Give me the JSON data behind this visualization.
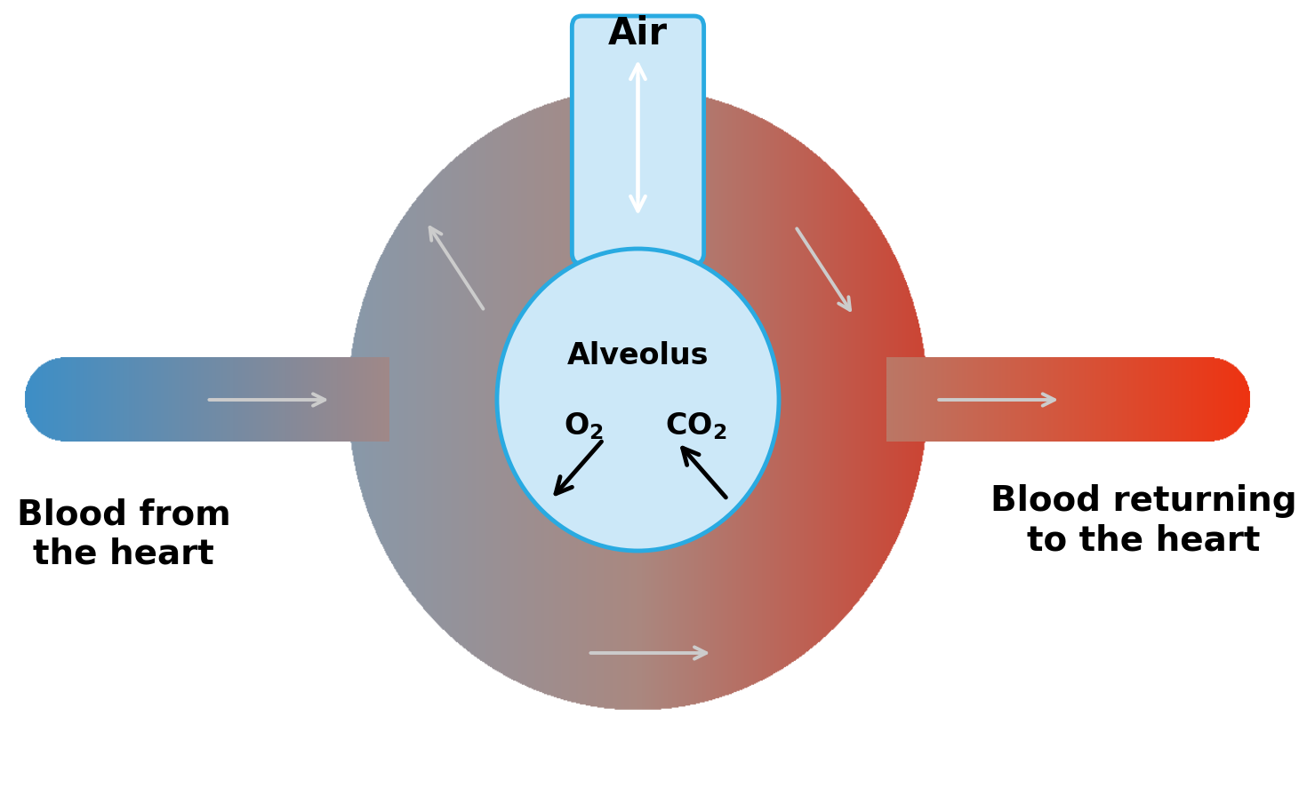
{
  "bg_color": "#ffffff",
  "alveolus_fill": "#cce8f8",
  "alveolus_border": "#29aae1",
  "air_tube_fill": "#cce8f8",
  "air_tube_border": "#29aae1",
  "air_label": "Air",
  "alveolus_label": "Alveolus",
  "o2_label": "O₂",
  "co2_label": "CO₂",
  "blood_left_label": "Blood from\nthe heart",
  "blood_right_label": "Blood returning\nto the heart",
  "large_circle_left_color": "#8899aa",
  "large_circle_mid_color": "#aa8880",
  "large_circle_right_color": "#cc4433",
  "vessel_left_start": "#3d8fc7",
  "vessel_left_end": "#a08888",
  "vessel_right_start": "#bb7766",
  "vessel_right_end": "#ee3311",
  "gray_arrow_color": "#cccccc",
  "white_arrow_color": "#ffffff",
  "black_arrow_color": "#111111",
  "air_fontsize": 30,
  "alveolus_fontsize": 24,
  "gas_fontsize": 24,
  "label_fontsize": 28
}
